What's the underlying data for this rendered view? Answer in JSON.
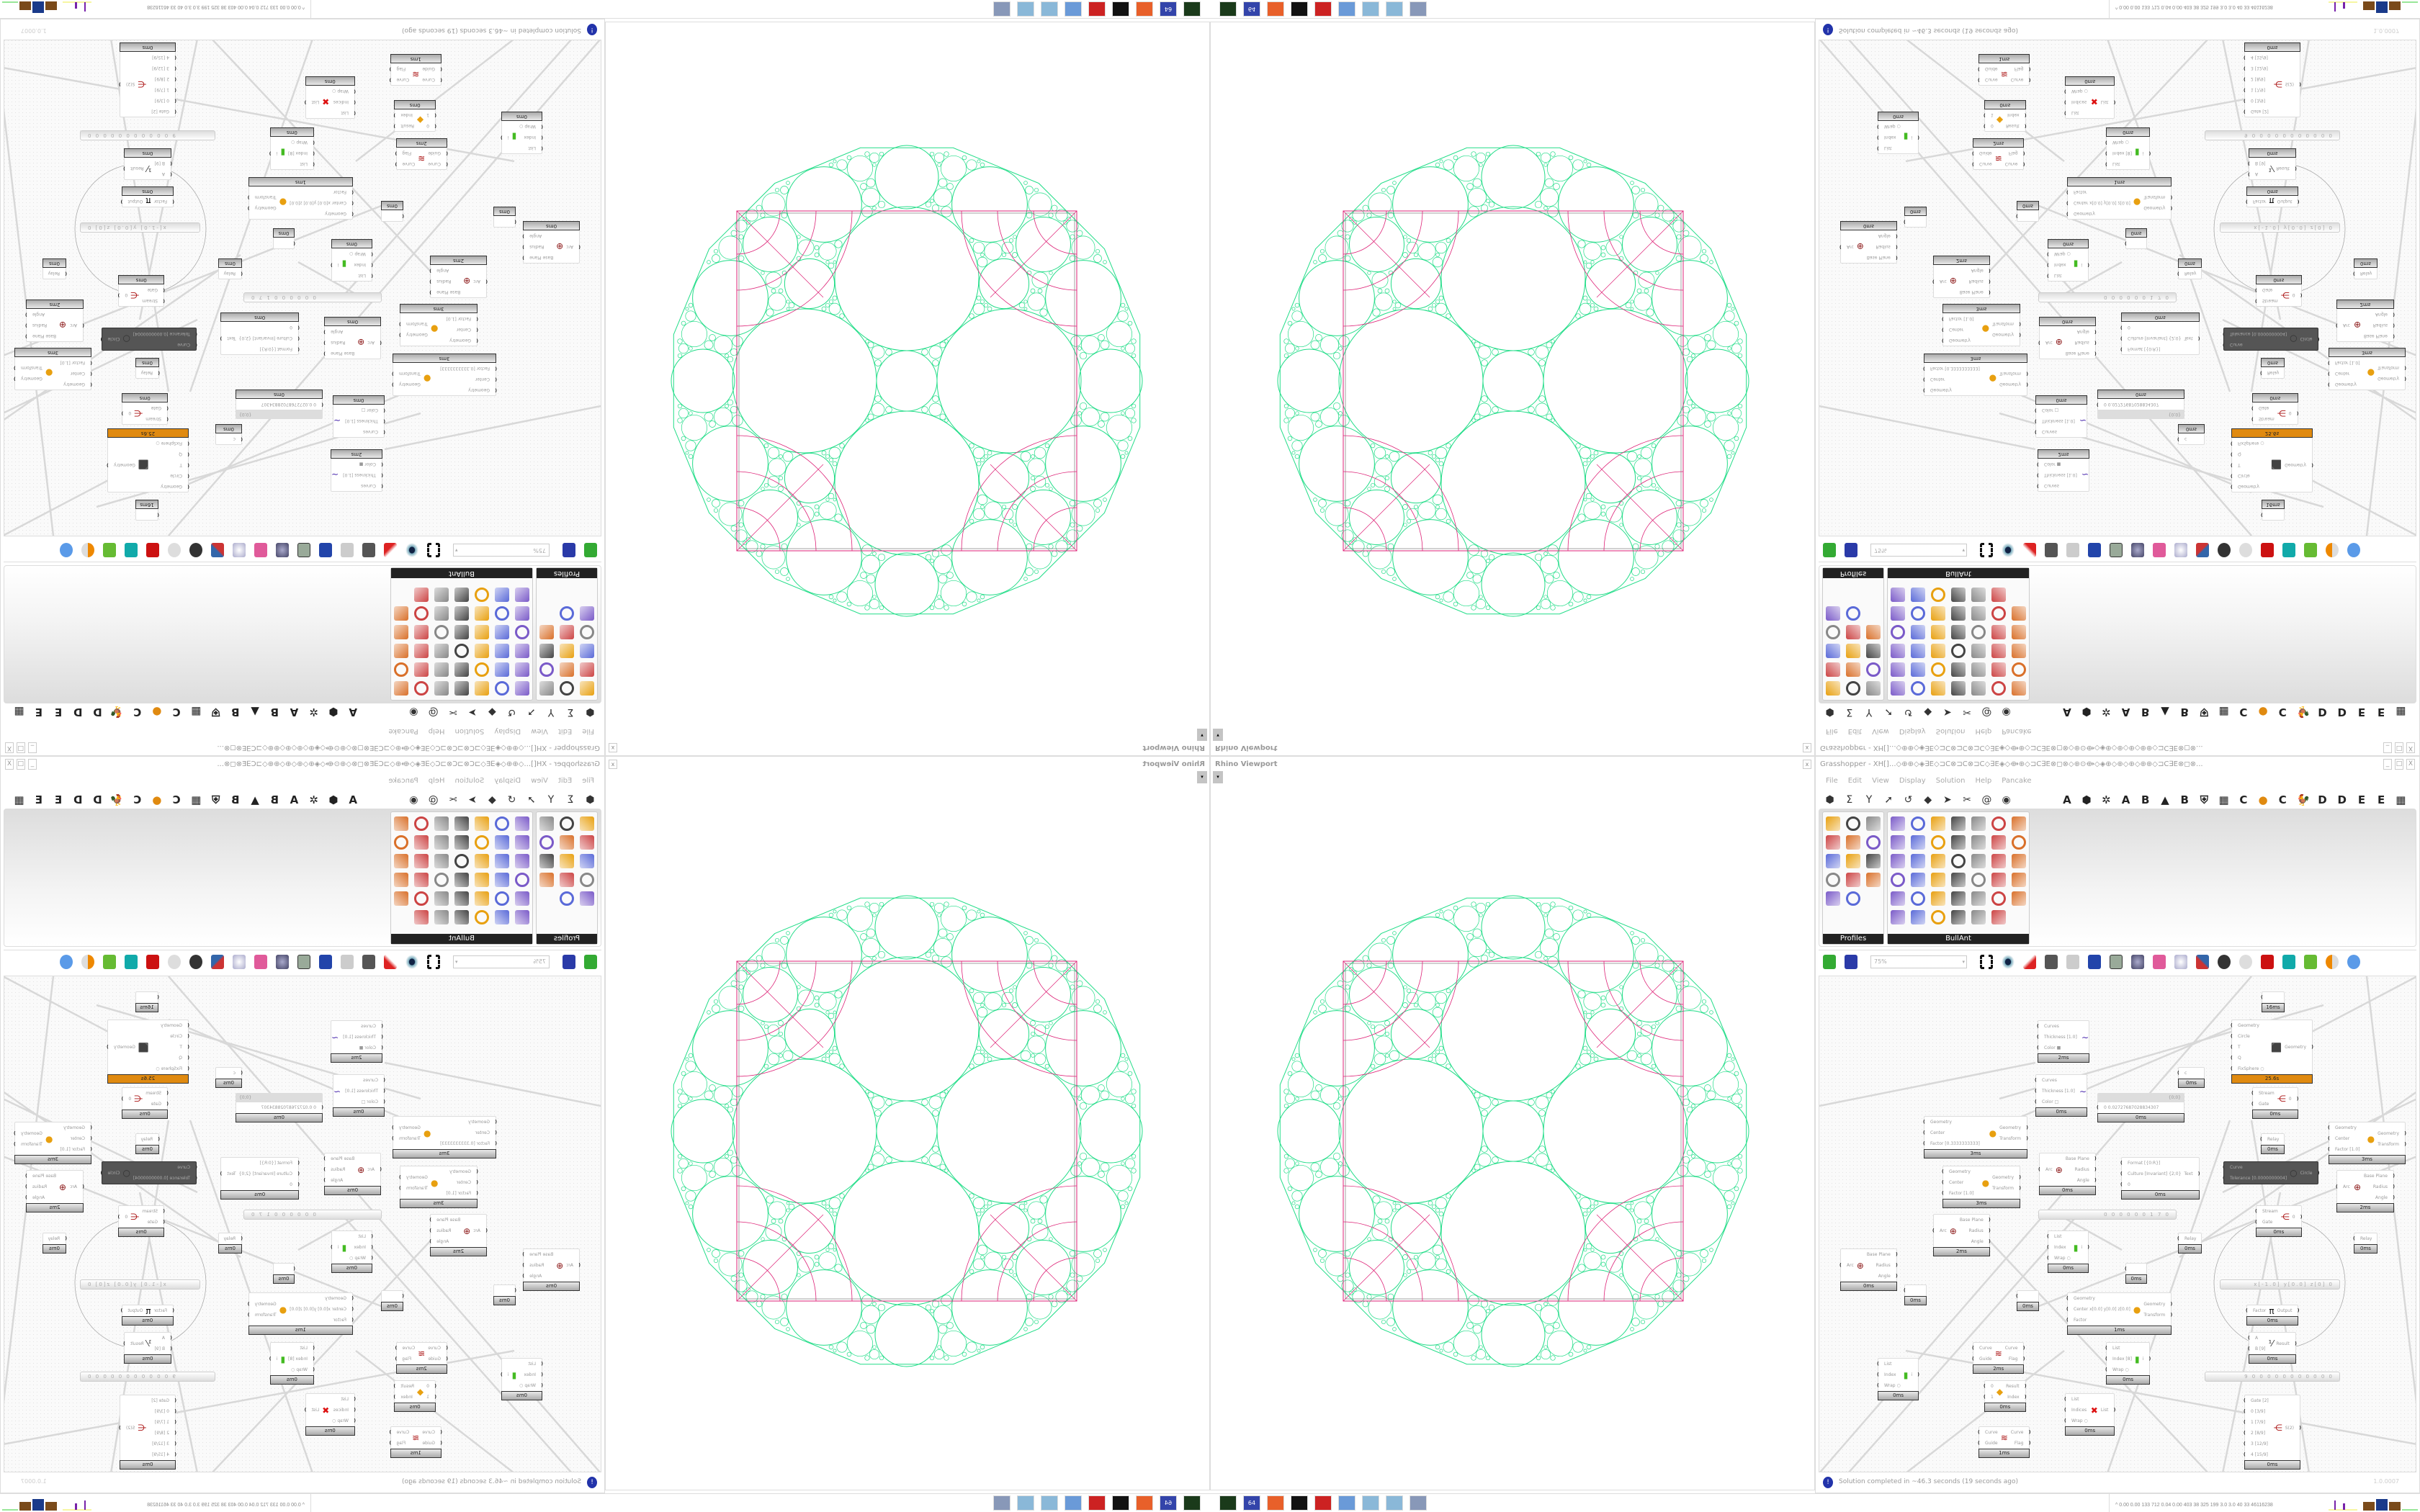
{
  "viewport": {
    "title": "Rhino Viewport",
    "close": "x",
    "dropdown": "▾"
  },
  "grasshopper": {
    "title": "Grasshopper - XH[]...◇⊕⊕◇◈∃E◇⊐C⊗⊐C⊗⊐C◇∃E◈◇⟴⊕◇⊐C∃E⊗◻⊗◇⊕⊙⟴◇◈⊕◇⊕◇⊕◇⊕⊕◇⊐C∃E⊗◻⊗...",
    "window_buttons": [
      "_",
      "□",
      "X"
    ],
    "menu": [
      "File",
      "Edit",
      "View",
      "Display",
      "Solution",
      "Help",
      "Pancake"
    ],
    "component_icons": [
      "hexagon-icon",
      "sigma-icon",
      "y-branch-icon",
      "arrow-icon",
      "hook-icon",
      "shape-icon",
      "plane-icon",
      "scissors-icon",
      "spiral-icon",
      "eye-icon"
    ],
    "component_letters": [
      "A",
      "⬢",
      "✲",
      "A",
      "B",
      "▲",
      "B",
      "⛨",
      "▦",
      "C",
      "●",
      "C",
      "🐓",
      "D",
      "D",
      "E",
      "E",
      "▦"
    ],
    "tabs": [
      {
        "label": "Profiles",
        "icon_count": 14
      },
      {
        "label": "BullAnt",
        "icon_count": 41
      }
    ],
    "canvas_toolbar": {
      "zoom": "75%"
    },
    "status": {
      "text": "Solution completed in ~46.3 seconds (19 seconds ago)",
      "version": "1.0.0007"
    }
  },
  "canvas": {
    "nodes": [
      {
        "name": "custom-preview",
        "inputs": [
          "Curves",
          "Thickness [1.0]",
          "Color ■"
        ],
        "outputs": [],
        "icon": "∼",
        "icon_color": "#4422aa",
        "time": "2ms"
      },
      {
        "name": "custom-preview",
        "inputs": [
          "Curves",
          "Thickness [1.0]",
          "Color □"
        ],
        "outputs": [],
        "icon": "∼",
        "icon_color": "#4422aa",
        "time": "0ms"
      },
      {
        "name": "scale",
        "inputs": [
          "Geometry",
          "Center",
          "Factor [0.3333333333]"
        ],
        "outputs": [
          "Geometry",
          "Transform"
        ],
        "icon": "●",
        "icon_color": "#e8a010",
        "time": "3ms"
      },
      {
        "name": "scale",
        "inputs": [
          "Geometry",
          "Center",
          "Factor [1.0]"
        ],
        "outputs": [
          "Geometry",
          "Transform"
        ],
        "icon": "●",
        "icon_color": "#e8a010",
        "time": "3ms"
      },
      {
        "name": "arc-deconstruct",
        "inputs": [
          "Arc"
        ],
        "outputs": [
          "Base Plane",
          "Radius",
          "Angle"
        ],
        "icon": "⊕",
        "icon_color": "#881111",
        "time": "0ms"
      },
      {
        "name": "panel",
        "inputs": [
          "0  0.02727687028834307"
        ],
        "outputs": [],
        "icon": "",
        "icon_color": "#000",
        "time": "0ms",
        "header": "{0;0}"
      },
      {
        "name": "kangaroo-solver",
        "inputs": [
          "Geometry",
          "Circle",
          "T",
          "Q",
          "FixSphere ○"
        ],
        "outputs": [
          "Geometry"
        ],
        "icon": "⬛",
        "icon_color": "#e07020",
        "time": "25.6s",
        "hot": true
      },
      {
        "name": "relay",
        "inputs": [
          "c"
        ],
        "outputs": [],
        "icon": "",
        "icon_color": "#000",
        "time": "0ms"
      },
      {
        "name": "relay",
        "inputs": [
          ""
        ],
        "outputs": [],
        "icon": "",
        "icon_color": "#000",
        "time": "16ms"
      },
      {
        "name": "stream-gate",
        "inputs": [
          "Stream",
          "Gate"
        ],
        "outputs": [
          "0"
        ],
        "icon": "⋲",
        "icon_color": "#aa1111",
        "time": "0ms"
      },
      {
        "name": "relay",
        "inputs": [
          "Relay"
        ],
        "outputs": [],
        "icon": "",
        "icon_color": "#000",
        "time": "0ms"
      },
      {
        "name": "format",
        "inputs": [
          "Format [{0:R}]",
          "Culture [Invariant] {2;0}",
          "0"
        ],
        "outputs": [
          "Text"
        ],
        "icon": "",
        "icon_color": "#000",
        "time": "0ms"
      },
      {
        "name": "fit-circle",
        "inputs": [
          "Curve",
          "Tolerance [0.0000000004]"
        ],
        "outputs": [
          "Circle"
        ],
        "icon": "○",
        "icon_color": "#333",
        "time": "",
        "dark": true
      },
      {
        "name": "scale",
        "inputs": [
          "Geometry",
          "Center",
          "Factor [1.0]"
        ],
        "outputs": [
          "Geometry",
          "Transform"
        ],
        "icon": "●",
        "icon_color": "#e8a010",
        "time": "3ms"
      },
      {
        "name": "arc-deconstruct",
        "inputs": [
          "Arc"
        ],
        "outputs": [
          "Base Plane",
          "Radius",
          "Angle"
        ],
        "icon": "⊕",
        "icon_color": "#881111",
        "time": "2ms"
      },
      {
        "name": "arc-deconstruct",
        "inputs": [
          "Arc"
        ],
        "outputs": [
          "Base Plane",
          "Radius",
          "Angle"
        ],
        "icon": "⊕",
        "icon_color": "#881111",
        "time": "2ms"
      },
      {
        "name": "arc-deconstruct",
        "inputs": [
          "Arc"
        ],
        "outputs": [
          "Base Plane",
          "Radius",
          "Angle"
        ],
        "icon": "⊕",
        "icon_color": "#881111",
        "time": "0ms"
      },
      {
        "name": "relay",
        "inputs": [
          ""
        ],
        "outputs": [],
        "icon": "",
        "icon_color": "#000",
        "time": "0ms"
      },
      {
        "name": "list-item",
        "inputs": [
          "List",
          "Index",
          "Wrap ○"
        ],
        "outputs": [
          "i"
        ],
        "icon": "▮",
        "icon_color": "#44bb22",
        "time": "0ms"
      },
      {
        "name": "relay",
        "inputs": [
          ""
        ],
        "outputs": [],
        "icon": "",
        "icon_color": "#000",
        "time": "0ms"
      },
      {
        "name": "scale",
        "inputs": [
          "Geometry",
          "Center x[0.0] y[0.0] z[0.0]",
          "Factor"
        ],
        "outputs": [
          "Geometry",
          "Transform"
        ],
        "icon": "●",
        "icon_color": "#e8a010",
        "time": "1ms"
      },
      {
        "name": "flip-curve",
        "inputs": [
          "Curve",
          "Guide"
        ],
        "outputs": [
          "Curve",
          "Flag"
        ],
        "icon": "≋",
        "icon_color": "#aa1111",
        "time": "2ms"
      },
      {
        "name": "list-item",
        "inputs": [
          "List",
          "Index",
          "Wrap ○"
        ],
        "outputs": [
          "i"
        ],
        "icon": "▮",
        "icon_color": "#44bb22",
        "time": "0ms"
      },
      {
        "name": "pick",
        "inputs": [
          "0",
          "1"
        ],
        "outputs": [
          "Result",
          "Index"
        ],
        "icon": "◆",
        "icon_color": "#e8a010",
        "time": "0ms"
      },
      {
        "name": "cull-index",
        "inputs": [
          "List",
          "Indices",
          "Wrap ○"
        ],
        "outputs": [
          "List"
        ],
        "icon": "✖",
        "icon_color": "#dd1111",
        "time": "0ms"
      },
      {
        "name": "flip-curve",
        "inputs": [
          "Curve",
          "Guide"
        ],
        "outputs": [
          "Curve",
          "Flag"
        ],
        "icon": "≋",
        "icon_color": "#aa1111",
        "time": "1ms"
      },
      {
        "name": "list-item",
        "inputs": [
          "List",
          "Index [8]",
          "Wrap ○"
        ],
        "outputs": [
          "i"
        ],
        "icon": "▮",
        "icon_color": "#44bb22",
        "time": "0ms"
      },
      {
        "name": "stream-gate",
        "inputs": [
          "Stream",
          "Gate"
        ],
        "outputs": [
          "0"
        ],
        "icon": "⋲",
        "icon_color": "#aa1111",
        "time": "0ms"
      },
      {
        "name": "relay",
        "inputs": [
          "Relay"
        ],
        "outputs": [],
        "icon": "",
        "icon_color": "#000",
        "time": "0ms"
      },
      {
        "name": "relay",
        "inputs": [
          "Relay"
        ],
        "outputs": [],
        "icon": "",
        "icon_color": "#000",
        "time": "0ms"
      },
      {
        "name": "relay",
        "inputs": [
          ""
        ],
        "outputs": [],
        "icon": "",
        "icon_color": "#000",
        "time": "0ms"
      },
      {
        "name": "pi",
        "inputs": [
          "Factor"
        ],
        "outputs": [
          "Output"
        ],
        "icon": "π",
        "icon_color": "#111",
        "time": "0ms"
      },
      {
        "name": "division",
        "inputs": [
          "A",
          "B [9]"
        ],
        "outputs": [
          "Result"
        ],
        "icon": "⅟",
        "icon_color": "#333",
        "time": "0ms"
      },
      {
        "name": "stream-filter",
        "inputs": [
          "Gate [2]",
          "0 [3/9]",
          "1 [7/9]",
          "2 [8/9]",
          "3 [12/9]",
          "4 [15/9]"
        ],
        "outputs": [
          "S(2)"
        ],
        "icon": "⋲",
        "icon_color": "#aa1111",
        "time": "0ms"
      }
    ],
    "sliders": [
      {
        "name": "number-slider",
        "value": "0 0 0 0 0 0 1 7 0"
      },
      {
        "name": "vector-slider",
        "value": "x[-1.0] y[0.0] z[0]  0"
      },
      {
        "name": "number-slider",
        "value": "9 0 0 0 0 0 0 0 0 0 0 0"
      }
    ]
  },
  "taskbar": {
    "icons": [
      {
        "name": "terminal-icon",
        "label": "",
        "color": "#1a3a1a"
      },
      {
        "name": "floppy-icon",
        "label": "64",
        "color": "#3344aa"
      },
      {
        "name": "firefox-icon",
        "label": "",
        "color": "#e8602a"
      },
      {
        "name": "rhino-icon",
        "label": "",
        "color": "#111111"
      },
      {
        "name": "gear-icon",
        "label": "",
        "color": "#cc2222"
      },
      {
        "name": "calculator-icon",
        "label": "",
        "color": "#6a9ad8"
      },
      {
        "name": "notepad-icon",
        "label": "",
        "color": "#8ab8d8"
      },
      {
        "name": "notepad-icon",
        "label": "",
        "color": "#8ab8d8"
      },
      {
        "name": "document-icon",
        "label": "",
        "color": "#8898b8"
      }
    ],
    "tray_text": "^  0.00 0.00 133 712 0.04 0.00 403  38  325  199  3.0  3.0  40  33  46116238"
  },
  "colors": {
    "circles": "#22dd88",
    "grid": "#dd2277",
    "accent": "#e08a10"
  }
}
